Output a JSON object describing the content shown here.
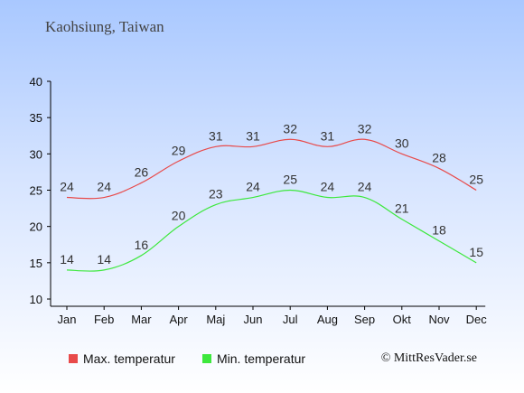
{
  "header": {
    "location": "Kaohsiung, Taiwan"
  },
  "legend": {
    "max_label": "Max. temperatur",
    "min_label": "Min. temperatur"
  },
  "footer": {
    "copyright": "© MittResVader.se"
  },
  "colors": {
    "max": "#e84a4a",
    "min": "#3de83d"
  },
  "chart_data": {
    "type": "line",
    "categories": [
      "Jan",
      "Feb",
      "Mar",
      "Apr",
      "Maj",
      "Jun",
      "Jul",
      "Aug",
      "Sep",
      "Okt",
      "Nov",
      "Dec"
    ],
    "series": [
      {
        "name": "Max. temperatur",
        "values": [
          24,
          24,
          26,
          29,
          31,
          31,
          32,
          31,
          32,
          30,
          28,
          25
        ]
      },
      {
        "name": "Min. temperatur",
        "values": [
          14,
          14,
          16,
          20,
          23,
          24,
          25,
          24,
          24,
          21,
          18,
          15
        ]
      }
    ],
    "title": "Kaohsiung, Taiwan",
    "xlabel": "",
    "ylabel": "",
    "ylim": [
      10,
      40
    ],
    "yticks": [
      10,
      15,
      20,
      25,
      30,
      35,
      40
    ],
    "grid": false,
    "legend_position": "bottom"
  }
}
